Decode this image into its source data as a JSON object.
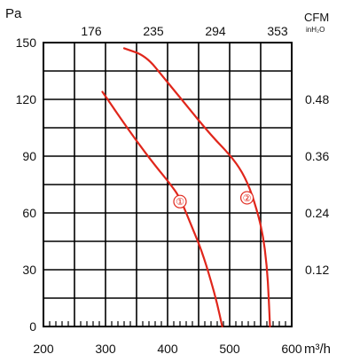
{
  "chart_data": {
    "type": "line",
    "title": "",
    "xlabel": "m³/h",
    "ylabel": "Pa",
    "xlim": [
      200,
      600
    ],
    "ylim": [
      0,
      150
    ],
    "x_ticks": [
      200,
      300,
      400,
      500,
      600
    ],
    "y_ticks": [
      0,
      30,
      60,
      90,
      120,
      150
    ],
    "secondary_x": {
      "label": "CFM",
      "tick_positions_m3h": [
        300,
        400,
        500,
        600
      ],
      "tick_labels": [
        "176",
        "235",
        "294",
        "353"
      ]
    },
    "secondary_y": {
      "label": "inH₂O",
      "tick_positions_pa": [
        30,
        60,
        90,
        120
      ],
      "tick_labels": [
        "0.12",
        "0.24",
        "0.36",
        "0.48"
      ]
    },
    "grid": true,
    "series": [
      {
        "name": "①",
        "color": "#e0261b",
        "points": [
          [
            295,
            124
          ],
          [
            320,
            112
          ],
          [
            350,
            98
          ],
          [
            380,
            85
          ],
          [
            405,
            75
          ],
          [
            420,
            68
          ],
          [
            440,
            52
          ],
          [
            455,
            40
          ],
          [
            470,
            24
          ],
          [
            480,
            12
          ],
          [
            488,
            0
          ]
        ]
      },
      {
        "name": "②",
        "color": "#e0261b",
        "points": [
          [
            330,
            147
          ],
          [
            365,
            143
          ],
          [
            395,
            131
          ],
          [
            430,
            117
          ],
          [
            470,
            101
          ],
          [
            505,
            89
          ],
          [
            525,
            79
          ],
          [
            540,
            66
          ],
          [
            553,
            50
          ],
          [
            560,
            32
          ],
          [
            563,
            15
          ],
          [
            565,
            0
          ]
        ]
      }
    ],
    "series_markers": [
      {
        "label": "①",
        "x": 420,
        "y": 66
      },
      {
        "label": "②",
        "x": 528,
        "y": 68
      }
    ]
  }
}
